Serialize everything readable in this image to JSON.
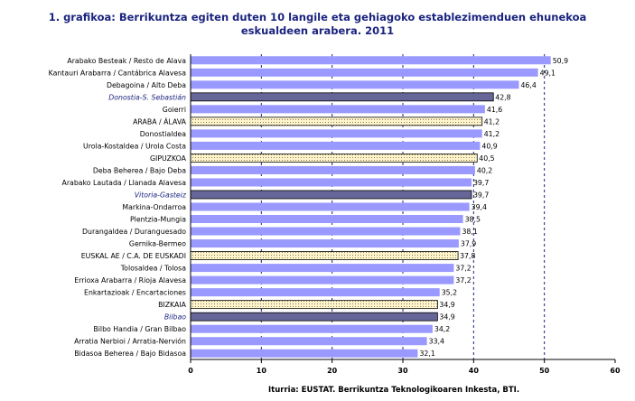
{
  "chart_data": {
    "type": "bar",
    "orientation": "horizontal",
    "title": [
      "1. grafikoa: Berrikuntza egiten duten 10 langile eta gehiagoko establezimenduen ehunekoa",
      "eskualdeen arabera. 2011"
    ],
    "source": "Iturria: EUSTAT. Berrikuntza Teknologikoaren Inkesta, BTI.",
    "xlim": [
      0,
      60
    ],
    "xticks": [
      "0",
      "10",
      "20",
      "30",
      "40",
      "50",
      "60"
    ],
    "dashed_gridlines_at": [
      10,
      20,
      30,
      40,
      50
    ],
    "colors": {
      "region": "#9999ff",
      "city": "#666699",
      "total_fill": "#fff5cc",
      "total_stroke": "#000000",
      "border": "#000000"
    },
    "categories": [
      {
        "label": "Arabako Besteak  /  Resto de Alava",
        "value": 50.9,
        "value_label": "50,9",
        "kind": "region"
      },
      {
        "label": "Kantauri Arabarra  /  Cantábrica Alavesa",
        "value": 49.1,
        "value_label": "49,1",
        "kind": "region"
      },
      {
        "label": "Debagoina  /  Alto Deba",
        "value": 46.4,
        "value_label": "46,4",
        "kind": "region"
      },
      {
        "label": "Donostia-S. Sebastián",
        "value": 42.8,
        "value_label": "42,8",
        "kind": "city"
      },
      {
        "label": "Goierri",
        "value": 41.6,
        "value_label": "41,6",
        "kind": "region"
      },
      {
        "label": "ARABA / ÁLAVA",
        "value": 41.2,
        "value_label": "41,2",
        "kind": "total"
      },
      {
        "label": "Donostialdea",
        "value": 41.2,
        "value_label": "41,2",
        "kind": "region"
      },
      {
        "label": "Urola-Kostaldea  /  Urola Costa",
        "value": 40.9,
        "value_label": "40,9",
        "kind": "region"
      },
      {
        "label": "GIPUZKOA",
        "value": 40.5,
        "value_label": "40,5",
        "kind": "total"
      },
      {
        "label": "Deba Beherea  /  Bajo Deba",
        "value": 40.2,
        "value_label": "40,2",
        "kind": "region"
      },
      {
        "label": "Arabako Lautada  /  Llanada Alavesa",
        "value": 39.7,
        "value_label": "39,7",
        "kind": "region"
      },
      {
        "label": "Vitoria-Gasteiz",
        "value": 39.7,
        "value_label": "39,7",
        "kind": "city"
      },
      {
        "label": "Markina-Ondarroa",
        "value": 39.4,
        "value_label": "39,4",
        "kind": "region"
      },
      {
        "label": "Plentzia-Mungia",
        "value": 38.5,
        "value_label": "38,5",
        "kind": "region"
      },
      {
        "label": "Durangaldea  /  Duranguesado",
        "value": 38.1,
        "value_label": "38,1",
        "kind": "region"
      },
      {
        "label": "Gernika-Bermeo",
        "value": 37.9,
        "value_label": "37,9",
        "kind": "region"
      },
      {
        "label": "EUSKAL AE  /  C.A. DE EUSKADI",
        "value": 37.8,
        "value_label": "37,8",
        "kind": "total"
      },
      {
        "label": "Tolosaldea  /  Tolosa",
        "value": 37.2,
        "value_label": "37,2",
        "kind": "region"
      },
      {
        "label": "Errioxa Arabarra  /  Rioja Alavesa",
        "value": 37.2,
        "value_label": "37,2",
        "kind": "region"
      },
      {
        "label": "Enkartazioak  /  Encartaciones",
        "value": 35.2,
        "value_label": "35,2",
        "kind": "region"
      },
      {
        "label": "BIZKAIA",
        "value": 34.9,
        "value_label": "34,9",
        "kind": "total"
      },
      {
        "label": "Bilbao",
        "value": 34.9,
        "value_label": "34,9",
        "kind": "city"
      },
      {
        "label": "Bilbo Handia  /  Gran Bilbao",
        "value": 34.2,
        "value_label": "34,2",
        "kind": "region"
      },
      {
        "label": "Arratia Nerbioi  /  Arratia-Nervión",
        "value": 33.4,
        "value_label": "33,4",
        "kind": "region"
      },
      {
        "label": "Bidasoa Beherea  /  Bajo Bidasoa",
        "value": 32.1,
        "value_label": "32,1",
        "kind": "region"
      }
    ]
  }
}
